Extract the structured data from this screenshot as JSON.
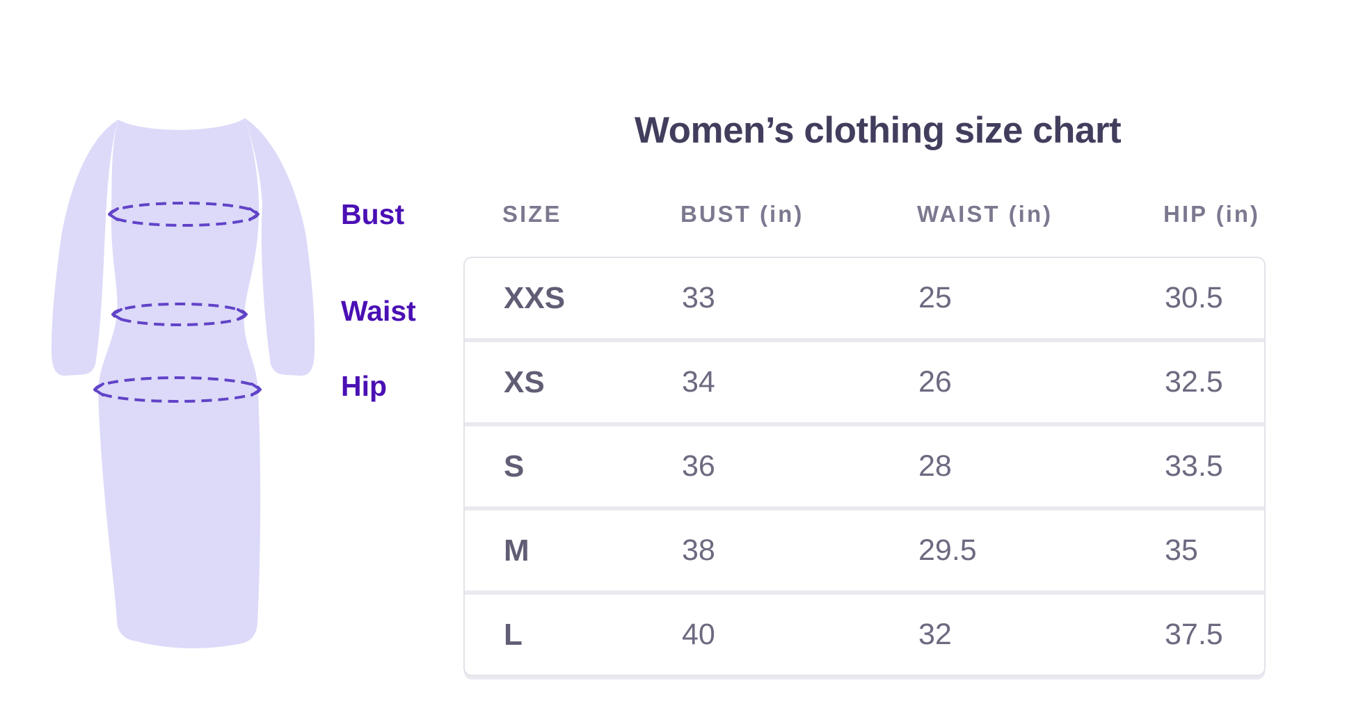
{
  "title": "Women’s clothing size chart",
  "illustration": {
    "labels": {
      "bust": "Bust",
      "waist": "Waist",
      "hip": "Hip"
    }
  },
  "chart_data": {
    "type": "table",
    "title": "Women’s clothing size chart",
    "columns": [
      "SIZE",
      "BUST (in)",
      "WAIST (in)",
      "HIP (in)"
    ],
    "rows": [
      [
        "XXS",
        "33",
        "25",
        "30.5"
      ],
      [
        "XS",
        "34",
        "26",
        "32.5"
      ],
      [
        "S",
        "36",
        "28",
        "33.5"
      ],
      [
        "M",
        "38",
        "29.5",
        "35"
      ],
      [
        "L",
        "40",
        "32",
        "37.5"
      ]
    ]
  },
  "colors": {
    "title_navy": "#413e5d",
    "header_gray": "#7c788f",
    "size_text": "#615d75",
    "value_text": "#6d6980",
    "border_gray": "#e3e2e9",
    "separator": "#eae9ef",
    "dress_lavender": "#dcdaf8",
    "dash_purple": "#6143c8",
    "label_purple": "#4a10b4"
  }
}
